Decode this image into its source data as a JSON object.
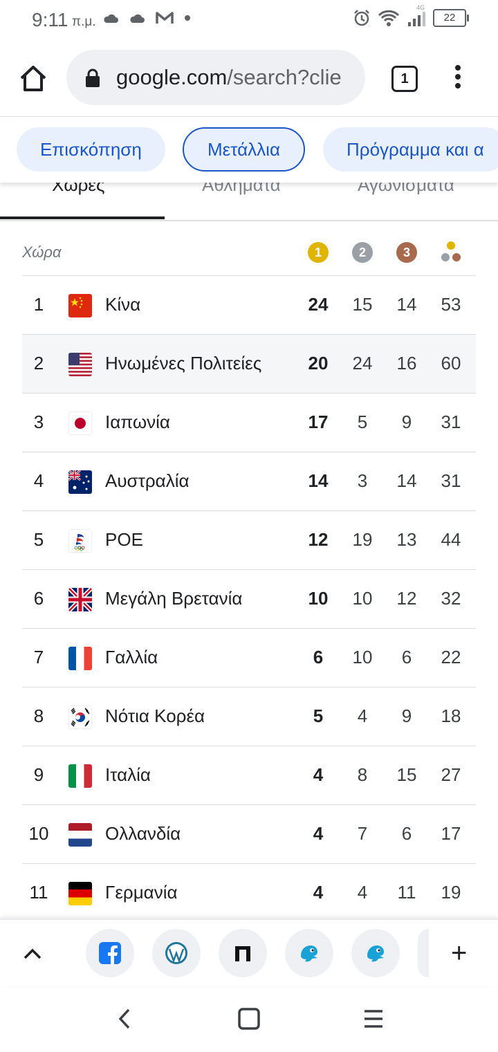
{
  "status_bar": {
    "time": "9:11",
    "ampm": "π.μ.",
    "network": "4G",
    "battery": "22"
  },
  "browser": {
    "url_host": "google.com",
    "url_rest": "/search?clie",
    "tab_count": "1"
  },
  "chips": [
    "Επισκόπηση",
    "Μετάλλια",
    "Πρόγραμμα και α"
  ],
  "subtabs": [
    "Χώρες",
    "Αθλήματα",
    "Αγωνίσματα"
  ],
  "table": {
    "country_header": "Χώρα",
    "medal_headers": {
      "gold": "1",
      "silver": "2",
      "bronze": "3"
    },
    "colors": {
      "gold": "#e0b500",
      "silver": "#9aa0a6",
      "bronze": "#a86a4f"
    },
    "rows": [
      {
        "rank": "1",
        "country": "Κίνα",
        "flag": "cn",
        "gold": "24",
        "silver": "15",
        "bronze": "14",
        "total": "53"
      },
      {
        "rank": "2",
        "country": "Ηνωμένες Πολιτείες",
        "flag": "us",
        "gold": "20",
        "silver": "24",
        "bronze": "16",
        "total": "60"
      },
      {
        "rank": "3",
        "country": "Ιαπωνία",
        "flag": "jp",
        "gold": "17",
        "silver": "5",
        "bronze": "9",
        "total": "31"
      },
      {
        "rank": "4",
        "country": "Αυστραλία",
        "flag": "au",
        "gold": "14",
        "silver": "3",
        "bronze": "14",
        "total": "31"
      },
      {
        "rank": "5",
        "country": "ΡΟΕ",
        "flag": "roc",
        "gold": "12",
        "silver": "19",
        "bronze": "13",
        "total": "44"
      },
      {
        "rank": "6",
        "country": "Μεγάλη Βρετανία",
        "flag": "gb",
        "gold": "10",
        "silver": "10",
        "bronze": "12",
        "total": "32"
      },
      {
        "rank": "7",
        "country": "Γαλλία",
        "flag": "fr",
        "gold": "6",
        "silver": "10",
        "bronze": "6",
        "total": "22"
      },
      {
        "rank": "8",
        "country": "Νότια Κορέα",
        "flag": "kr",
        "gold": "5",
        "silver": "4",
        "bronze": "9",
        "total": "18"
      },
      {
        "rank": "9",
        "country": "Ιταλία",
        "flag": "it",
        "gold": "4",
        "silver": "8",
        "bronze": "15",
        "total": "27"
      },
      {
        "rank": "10",
        "country": "Ολλανδία",
        "flag": "nl",
        "gold": "4",
        "silver": "7",
        "bronze": "6",
        "total": "17"
      },
      {
        "rank": "11",
        "country": "Γερμανία",
        "flag": "de",
        "gold": "4",
        "silver": "4",
        "bronze": "11",
        "total": "19"
      }
    ]
  },
  "bookmarks": [
    "facebook-icon",
    "wordpress-icon",
    "pi-icon",
    "bird-icon",
    "bird-icon"
  ]
}
